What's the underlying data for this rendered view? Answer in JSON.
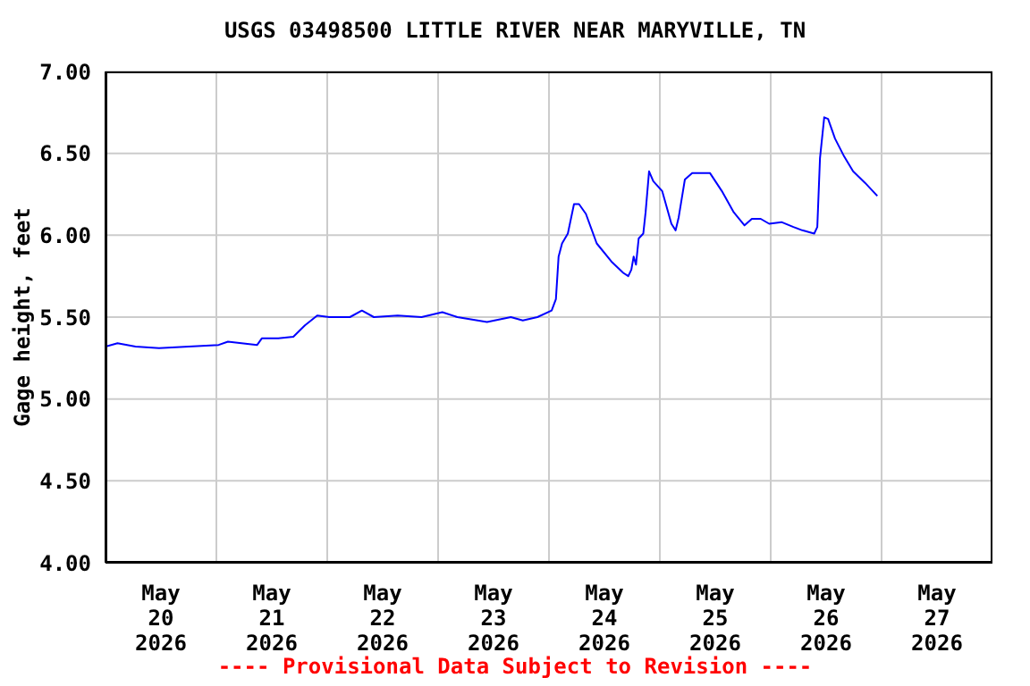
{
  "chart_data": {
    "type": "line",
    "title": "USGS 03498500 LITTLE RIVER NEAR MARYVILLE, TN",
    "ylabel": "Gage height, feet",
    "annotations": [
      "---- Provisional Data Subject to Revision ----"
    ],
    "x": [
      "2026-05-20T00:00",
      "2026-05-20T02:36",
      "2026-05-20T06:30",
      "2026-05-20T11:36",
      "2026-05-20T18:00",
      "2026-05-21T00:30",
      "2026-05-21T02:30",
      "2026-05-21T08:50",
      "2026-05-21T09:50",
      "2026-05-21T13:25",
      "2026-05-21T16:40",
      "2026-05-21T19:10",
      "2026-05-21T21:50",
      "2026-05-22T00:25",
      "2026-05-22T04:55",
      "2026-05-22T07:30",
      "2026-05-22T10:05",
      "2026-05-22T15:15",
      "2026-05-22T20:25",
      "2026-05-23T00:55",
      "2026-05-23T04:10",
      "2026-05-23T10:35",
      "2026-05-23T15:45",
      "2026-05-23T18:20",
      "2026-05-23T21:30",
      "2026-05-24T00:35",
      "2026-05-24T01:30",
      "2026-05-24T02:05",
      "2026-05-24T02:50",
      "2026-05-24T04:05",
      "2026-05-24T05:25",
      "2026-05-24T06:30",
      "2026-05-24T08:00",
      "2026-05-24T10:20",
      "2026-05-24T13:30",
      "2026-05-24T16:05",
      "2026-05-24T17:10",
      "2026-05-24T17:50",
      "2026-05-24T18:20",
      "2026-05-24T18:50",
      "2026-05-24T19:25",
      "2026-05-24T20:25",
      "2026-05-24T20:55",
      "2026-05-24T21:40",
      "2026-05-24T22:35",
      "2026-05-25T00:30",
      "2026-05-25T02:30",
      "2026-05-25T03:25",
      "2026-05-25T04:05",
      "2026-05-25T05:25",
      "2026-05-25T07:00",
      "2026-05-25T10:50",
      "2026-05-25T13:25",
      "2026-05-25T16:00",
      "2026-05-25T18:20",
      "2026-05-25T19:55",
      "2026-05-25T21:50",
      "2026-05-25T23:40",
      "2026-05-26T02:20",
      "2026-05-26T04:55",
      "2026-05-26T06:50",
      "2026-05-26T09:25",
      "2026-05-26T10:05",
      "2026-05-26T10:40",
      "2026-05-26T11:35",
      "2026-05-26T12:25",
      "2026-05-26T13:55",
      "2026-05-26T15:55",
      "2026-05-26T17:50",
      "2026-05-26T20:25",
      "2026-05-26T23:05"
    ],
    "series": [
      {
        "color": "#0000ff",
        "values": [
          5.32,
          5.34,
          5.32,
          5.31,
          5.32,
          5.33,
          5.35,
          5.33,
          5.37,
          5.37,
          5.38,
          5.45,
          5.51,
          5.5,
          5.5,
          5.54,
          5.5,
          5.51,
          5.5,
          5.53,
          5.5,
          5.47,
          5.5,
          5.48,
          5.5,
          5.54,
          5.61,
          5.87,
          5.95,
          6.01,
          6.19,
          6.19,
          6.13,
          5.95,
          5.84,
          5.77,
          5.75,
          5.79,
          5.87,
          5.82,
          5.98,
          6.01,
          6.14,
          6.39,
          6.33,
          6.27,
          6.07,
          6.03,
          6.11,
          6.34,
          6.38,
          6.38,
          6.27,
          6.14,
          6.06,
          6.1,
          6.1,
          6.07,
          6.08,
          6.05,
          6.03,
          6.01,
          6.05,
          6.47,
          6.72,
          6.71,
          6.59,
          6.48,
          6.39,
          6.32,
          6.24
        ]
      }
    ],
    "xlim": [
      "2026-05-20T00:00",
      "2026-05-28T00:00"
    ],
    "xticks": [
      {
        "value": "2026-05-20T12:00",
        "label": "May\n20\n2026"
      },
      {
        "value": "2026-05-21T00:00",
        "label": null
      },
      {
        "value": "2026-05-21T12:00",
        "label": "May\n21\n2026"
      },
      {
        "value": "2026-05-22T00:00",
        "label": null
      },
      {
        "value": "2026-05-22T12:00",
        "label": "May\n22\n2026"
      },
      {
        "value": "2026-05-23T00:00",
        "label": null
      },
      {
        "value": "2026-05-23T12:00",
        "label": "May\n23\n2026"
      },
      {
        "value": "2026-05-24T00:00",
        "label": null
      },
      {
        "value": "2026-05-24T12:00",
        "label": "May\n24\n2026"
      },
      {
        "value": "2026-05-25T00:00",
        "label": null
      },
      {
        "value": "2026-05-25T12:00",
        "label": "May\n25\n2026"
      },
      {
        "value": "2026-05-26T00:00",
        "label": null
      },
      {
        "value": "2026-05-26T12:00",
        "label": "May\n26\n2026"
      },
      {
        "value": "2026-05-27T00:00",
        "label": null
      },
      {
        "value": "2026-05-27T12:00",
        "label": "May\n27\n2026"
      }
    ],
    "ylim": [
      4,
      7
    ],
    "yticks": [
      {
        "value": 4,
        "label": "4.00"
      },
      {
        "value": 4.5,
        "label": "4.50"
      },
      {
        "value": 5,
        "label": "5.00"
      },
      {
        "value": 5.5,
        "label": "5.50"
      },
      {
        "value": 6,
        "label": "6.00"
      },
      {
        "value": 6.5,
        "label": "6.50"
      },
      {
        "value": 7,
        "label": "7.00"
      }
    ],
    "grid": true,
    "marker": "none",
    "line_style": "solid"
  }
}
